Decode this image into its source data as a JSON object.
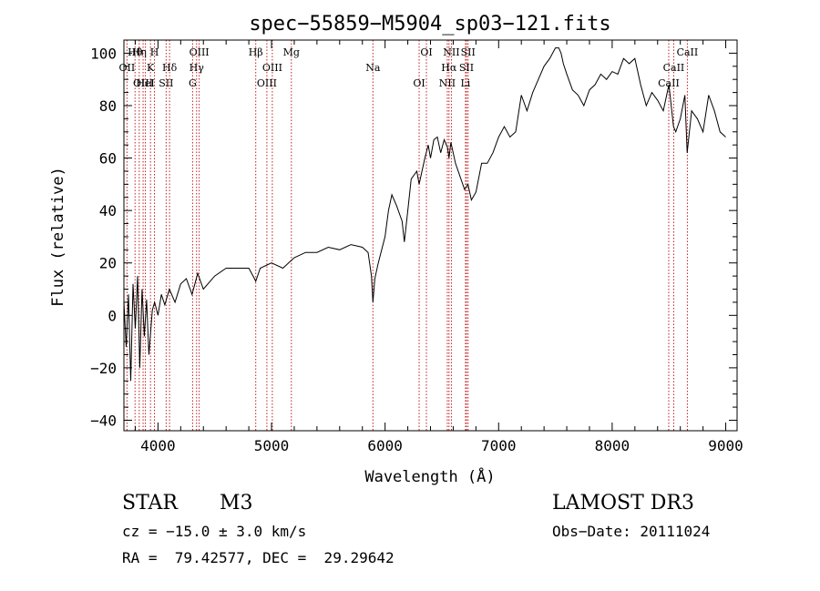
{
  "chart_data": {
    "type": "line",
    "title": "spec−55859−M5904_sp03−121.fits",
    "xlabel": "Wavelength (Å)",
    "ylabel": "Flux (relative)",
    "xlim": [
      3700,
      9100
    ],
    "ylim": [
      -44,
      105
    ],
    "xticks": [
      4000,
      5000,
      6000,
      7000,
      8000,
      9000
    ],
    "xtick_labels": [
      "4000",
      "5000",
      "6000",
      "7000",
      "8000",
      "9000"
    ],
    "yticks": [
      -40,
      -20,
      0,
      20,
      40,
      60,
      80,
      100
    ],
    "ytick_labels": [
      "−40",
      "−20",
      "0",
      "20",
      "40",
      "60",
      "80",
      "100"
    ],
    "grid": false,
    "series": [
      {
        "name": "spectrum",
        "x": [
          3700,
          3720,
          3740,
          3760,
          3780,
          3800,
          3820,
          3840,
          3860,
          3880,
          3900,
          3920,
          3950,
          3970,
          4000,
          4030,
          4060,
          4100,
          4150,
          4200,
          4250,
          4300,
          4350,
          4400,
          4500,
          4600,
          4700,
          4800,
          4850,
          4861,
          4900,
          5000,
          5100,
          5200,
          5300,
          5400,
          5500,
          5600,
          5700,
          5800,
          5850,
          5880,
          5893,
          5910,
          5940,
          6000,
          6030,
          6060,
          6100,
          6150,
          6170,
          6200,
          6230,
          6280,
          6300,
          6350,
          6380,
          6400,
          6430,
          6460,
          6490,
          6520,
          6550,
          6563,
          6580,
          6620,
          6660,
          6700,
          6730,
          6760,
          6800,
          6850,
          6900,
          6950,
          7000,
          7050,
          7100,
          7150,
          7200,
          7250,
          7300,
          7350,
          7400,
          7450,
          7500,
          7530,
          7550,
          7570,
          7600,
          7650,
          7700,
          7750,
          7800,
          7850,
          7900,
          7950,
          8000,
          8050,
          8100,
          8150,
          8200,
          8250,
          8300,
          8350,
          8400,
          8450,
          8500,
          8540,
          8560,
          8600,
          8640,
          8660,
          8700,
          8750,
          8800,
          8850,
          8900,
          8950,
          9000
        ],
        "y": [
          5,
          -12,
          8,
          -25,
          12,
          -5,
          15,
          -20,
          10,
          -8,
          6,
          -15,
          2,
          5,
          0,
          8,
          4,
          10,
          5,
          12,
          14,
          8,
          16,
          10,
          15,
          18,
          18,
          18,
          14,
          13,
          18,
          20,
          18,
          22,
          24,
          24,
          26,
          25,
          27,
          26,
          24,
          15,
          5,
          14,
          20,
          30,
          40,
          46,
          42,
          36,
          28,
          40,
          52,
          55,
          50,
          60,
          65,
          60,
          67,
          68,
          62,
          67,
          64,
          60,
          66,
          58,
          53,
          48,
          50,
          44,
          47,
          58,
          58,
          62,
          68,
          72,
          68,
          70,
          84,
          78,
          85,
          90,
          95,
          98,
          102,
          102,
          100,
          96,
          92,
          86,
          84,
          80,
          86,
          88,
          92,
          90,
          93,
          92,
          98,
          96,
          98,
          88,
          80,
          85,
          82,
          78,
          88,
          72,
          70,
          75,
          84,
          62,
          78,
          75,
          70,
          84,
          78,
          70,
          68
        ]
      }
    ],
    "lines": [
      {
        "name": "Hθ",
        "x": 3798
      },
      {
        "name": "OII",
        "x": 3727
      },
      {
        "name": "OIII",
        "x": 3869
      },
      {
        "name": "Hη",
        "x": 3835
      },
      {
        "name": "K",
        "x": 3934
      },
      {
        "name": "HeI",
        "x": 3889
      },
      {
        "name": "H",
        "x": 3969
      },
      {
        "name": "Hδ",
        "x": 4102
      },
      {
        "name": "SII",
        "x": 4072
      },
      {
        "name": "OIII",
        "x": 4363
      },
      {
        "name": "Hγ",
        "x": 4340
      },
      {
        "name": "G",
        "x": 4305
      },
      {
        "name": "Hβ",
        "x": 4861
      },
      {
        "name": "OIII",
        "x": 5007
      },
      {
        "name": "OIII",
        "x": 4959
      },
      {
        "name": "Mg",
        "x": 5175
      },
      {
        "name": "Na",
        "x": 5893
      },
      {
        "name": "OI",
        "x": 6300
      },
      {
        "name": "OI",
        "x": 6364
      },
      {
        "name": "Hα",
        "x": 6563
      },
      {
        "name": "NII",
        "x": 6548
      },
      {
        "name": "NII",
        "x": 6584
      },
      {
        "name": "SII",
        "x": 6717
      },
      {
        "name": "Li",
        "x": 6708
      },
      {
        "name": "SII",
        "x": 6731
      },
      {
        "name": "CaII",
        "x": 8542
      },
      {
        "name": "CaII",
        "x": 8498
      },
      {
        "name": "CaII",
        "x": 8662
      }
    ]
  },
  "info": {
    "object_class": "STAR",
    "subclass": "M3",
    "cz": "cz = −15.0 ± 3.0 km/s",
    "coords": "RA =  79.42577, DEC =  29.29642",
    "survey": "LAMOST DR3",
    "obs_date": "Obs−Date: 20111024"
  },
  "colors": {
    "line_marker": "#c02020",
    "spectrum": "#000000",
    "axes": "#000000"
  }
}
